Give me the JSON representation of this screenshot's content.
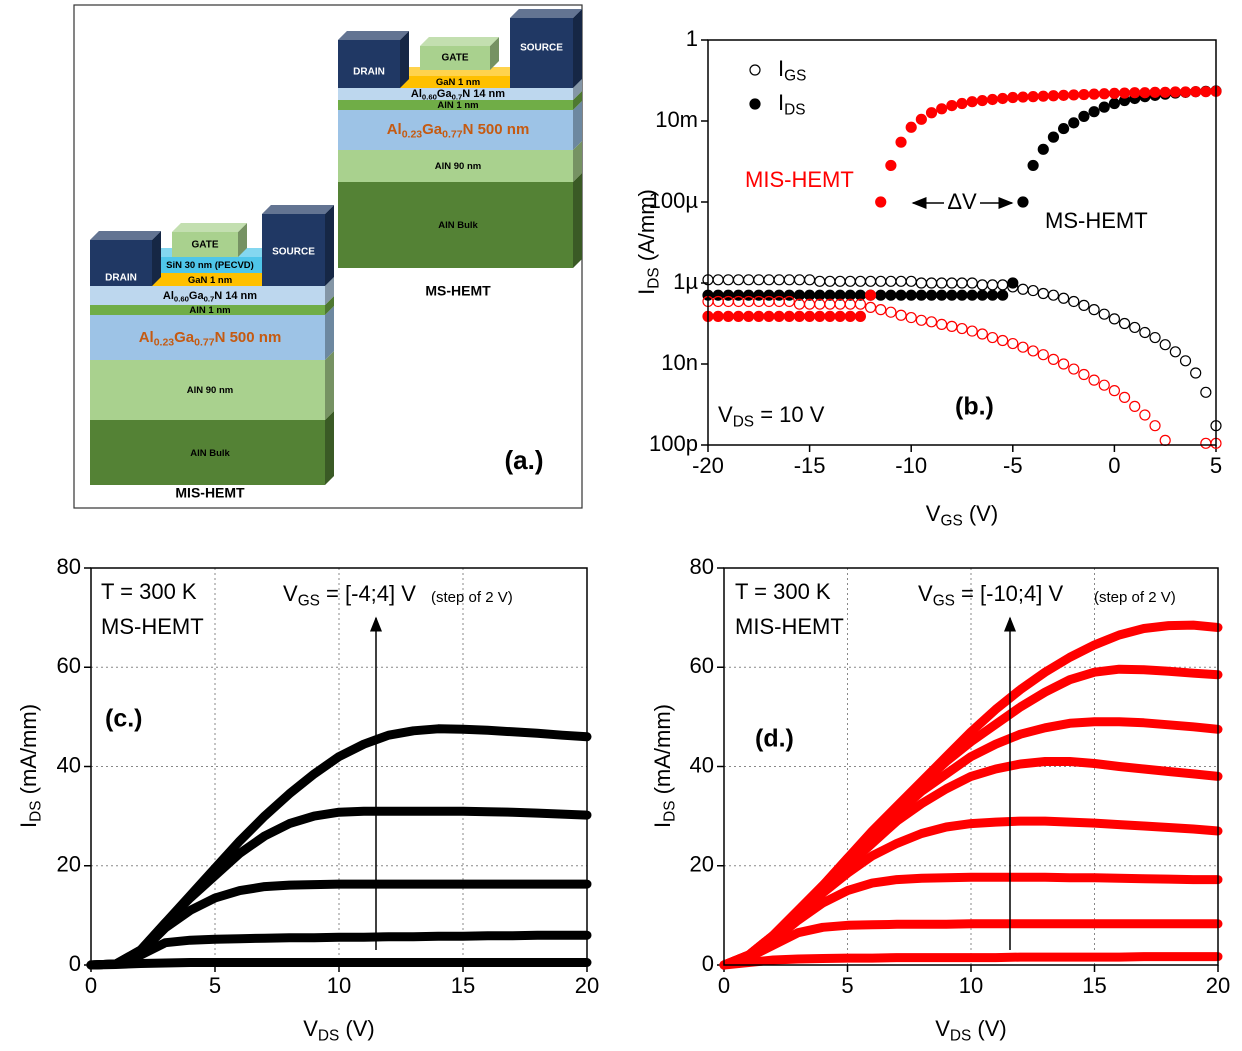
{
  "diagram": {
    "label": "(a.)",
    "devices": [
      {
        "name": "MIS-HEMT",
        "drain": "DRAIN",
        "gate": "GATE",
        "source": "SOURCE",
        "layers": [
          [
            "SiN 30 nm (PECVD)"
          ],
          [
            "GaN 1 nm"
          ],
          [
            "Al",
            "0.60",
            "Ga",
            "0.7",
            "N 14 nm"
          ],
          [
            "AlN 1 nm"
          ],
          [
            "Al",
            "0.23",
            "Ga",
            "0.77",
            "N 500 nm"
          ],
          [
            "AlN 90 nm"
          ],
          [
            "AlN Bulk"
          ]
        ]
      },
      {
        "name": "MS-HEMT",
        "drain": "DRAIN",
        "gate": "GATE",
        "source": "SOURCE",
        "layers": [
          [
            "GaN 1 nm"
          ],
          [
            "Al",
            "0.60",
            "Ga",
            "0.7",
            "N 14 nm"
          ],
          [
            "AlN 1 nm"
          ],
          [
            "Al",
            "0.23",
            "Ga",
            "0.77",
            "N 500 nm"
          ],
          [
            "AlN 90 nm"
          ],
          [
            "AlN Bulk"
          ]
        ]
      }
    ]
  },
  "chart_data": [
    {
      "type": "scatter",
      "title": "(b.)",
      "xlabel": [
        "V",
        "GS",
        " (V)"
      ],
      "ylabel": [
        "I",
        "DS",
        " (A/mm)"
      ],
      "xlim": [
        -20,
        5
      ],
      "xticks": [
        -20,
        -15,
        -10,
        -5,
        0,
        5
      ],
      "ylim": [
        1e-10,
        1
      ],
      "ylog": true,
      "yticks": [
        {
          "value": 1e-10,
          "label": "100p"
        },
        {
          "value": 1e-08,
          "label": "10n"
        },
        {
          "value": 1e-06,
          "label": "1µ"
        },
        {
          "value": 0.0001,
          "label": "100µ"
        },
        {
          "value": 0.01,
          "label": "10m"
        },
        1
      ],
      "legend": "upper left",
      "annotations": [
        [
          "MIS-HEMT"
        ],
        [
          "MS-HEMT"
        ],
        [
          "ΔV"
        ],
        [
          "V",
          "DS",
          " = 10 V"
        ]
      ],
      "x": [
        -20,
        -19.5,
        -19,
        -18.5,
        -18,
        -17.5,
        -17,
        -16.5,
        -16,
        -15.5,
        -15,
        -14.5,
        -14,
        -13.5,
        -13,
        -12.5,
        -12,
        -11.5,
        -11,
        -10.5,
        -10,
        -9.5,
        -9,
        -8.5,
        -8,
        -7.5,
        -7,
        -6.5,
        -6,
        -5.5,
        -5,
        -4.5,
        -4,
        -3.5,
        -3,
        -2.5,
        -2,
        -1.5,
        -1,
        -0.5,
        0,
        0.5,
        1,
        1.5,
        2,
        2.5,
        3,
        3.5,
        4,
        4.5,
        5
      ],
      "series": [
        {
          "name": [
            "I",
            "GS"
          ],
          "color": "#000000",
          "marker": "open",
          "values": [
            1.2e-06,
            1.2e-06,
            1.2e-06,
            1.2e-06,
            1.2e-06,
            1.2e-06,
            1.2e-06,
            1.2e-06,
            1.2e-06,
            1.2e-06,
            1.2e-06,
            1.1e-06,
            1.1e-06,
            1.1e-06,
            1.1e-06,
            1.1e-06,
            1.1e-06,
            1.1e-06,
            1.1e-06,
            1.1e-06,
            1.1e-06,
            1e-06,
            1e-06,
            1e-06,
            1e-06,
            1e-06,
            1e-06,
            9e-07,
            9e-07,
            9e-07,
            8e-07,
            7e-07,
            6.5e-07,
            5.5e-07,
            5e-07,
            4.2e-07,
            3.5e-07,
            2.8e-07,
            2.2e-07,
            1.7e-07,
            1.3e-07,
            1e-07,
            8e-08,
            6e-08,
            4.5e-08,
            3e-08,
            2e-08,
            1.2e-08,
            6e-09,
            2e-09,
            3e-10
          ]
        },
        {
          "name": [
            "I",
            "DS"
          ],
          "color": "#000000",
          "marker": "filled",
          "values": [
            5e-07,
            5e-07,
            5e-07,
            5e-07,
            5e-07,
            5e-07,
            5e-07,
            5e-07,
            5e-07,
            5e-07,
            5e-07,
            5e-07,
            5e-07,
            5e-07,
            5e-07,
            5e-07,
            5e-07,
            5e-07,
            5e-07,
            5e-07,
            5e-07,
            5e-07,
            5e-07,
            5e-07,
            5e-07,
            5e-07,
            5e-07,
            5e-07,
            5e-07,
            5e-07,
            1e-06,
            0.0001,
            0.0008,
            0.002,
            0.004,
            0.0065,
            0.009,
            0.013,
            0.017,
            0.022,
            0.027,
            0.032,
            0.036,
            0.04,
            0.043,
            0.046,
            0.049,
            0.051,
            0.053,
            0.054,
            0.055
          ]
        },
        {
          "color": "#ff0000",
          "marker": "open",
          "values": [
            3.5e-07,
            3.5e-07,
            3.5e-07,
            3.5e-07,
            3.5e-07,
            3.5e-07,
            3.5e-07,
            3.5e-07,
            3.5e-07,
            3e-07,
            3e-07,
            3e-07,
            3e-07,
            3e-07,
            3e-07,
            3e-07,
            2.5e-07,
            2.2e-07,
            1.9e-07,
            1.6e-07,
            1.4e-07,
            1.2e-07,
            1.1e-07,
            9.5e-08,
            8.5e-08,
            7.5e-08,
            6.5e-08,
            5.5e-08,
            4.5e-08,
            3.8e-08,
            3.2e-08,
            2.6e-08,
            2.1e-08,
            1.7e-08,
            1.3e-08,
            1e-08,
            7.5e-09,
            5.5e-09,
            4e-09,
            3e-09,
            2.2e-09,
            1.5e-09,
            9e-10,
            5.5e-10,
            3e-10,
            1.3e-10,
            null,
            null,
            null,
            1.1e-10,
            1.1e-10
          ]
        },
        {
          "color": "#ff0000",
          "marker": "filled",
          "values": [
            1.5e-07,
            1.5e-07,
            1.5e-07,
            1.5e-07,
            1.5e-07,
            1.5e-07,
            1.5e-07,
            1.5e-07,
            1.5e-07,
            1.5e-07,
            1.5e-07,
            1.5e-07,
            1.5e-07,
            1.5e-07,
            1.5e-07,
            1.5e-07,
            5e-07,
            0.0001,
            0.0008,
            0.003,
            0.007,
            0.011,
            0.016,
            0.02,
            0.024,
            0.027,
            0.03,
            0.032,
            0.034,
            0.036,
            0.038,
            0.039,
            0.04,
            0.041,
            0.042,
            0.043,
            0.044,
            0.045,
            0.046,
            0.047,
            0.048,
            0.049,
            0.05,
            0.05,
            0.051,
            0.051,
            0.052,
            0.052,
            0.053,
            0.053,
            0.054
          ]
        }
      ]
    },
    {
      "type": "line",
      "title": "(c.)",
      "xlabel": [
        "V",
        "DS",
        " (V)"
      ],
      "ylabel": [
        "I",
        "DS",
        " (mA/mm)"
      ],
      "xlim": [
        0,
        20
      ],
      "xticks": [
        0,
        5,
        10,
        15,
        20
      ],
      "ylim": [
        0,
        80
      ],
      "yticks": [
        0,
        20,
        40,
        60,
        80
      ],
      "grid": true,
      "annotations": [
        [
          "T = 300 K"
        ],
        [
          "MS-HEMT"
        ],
        [
          "V",
          "GS",
          " = [-4;4] V"
        ],
        [
          "(step of 2 V)"
        ]
      ],
      "x": [
        0,
        1,
        2,
        3,
        4,
        5,
        6,
        7,
        8,
        9,
        10,
        11,
        12,
        13,
        14,
        15,
        16,
        17,
        18,
        19,
        20
      ],
      "series": [
        {
          "color": "#000000",
          "values": [
            0,
            0.1,
            0.3,
            0.4,
            0.5,
            0.5,
            0.5,
            0.5,
            0.5,
            0.5,
            0.5,
            0.5,
            0.5,
            0.5,
            0.5,
            0.5,
            0.5,
            0.5,
            0.5,
            0.5,
            0.5
          ]
        },
        {
          "color": "#000000",
          "values": [
            0,
            0.2,
            2,
            4.5,
            5,
            5.2,
            5.3,
            5.4,
            5.5,
            5.5,
            5.6,
            5.6,
            5.7,
            5.7,
            5.8,
            5.8,
            5.9,
            5.9,
            6,
            6,
            6
          ]
        },
        {
          "color": "#000000",
          "values": [
            0,
            0.2,
            2.5,
            7.5,
            11,
            13.5,
            15,
            15.8,
            16.1,
            16.2,
            16.3,
            16.3,
            16.3,
            16.3,
            16.3,
            16.3,
            16.3,
            16.3,
            16.3,
            16.3,
            16.3
          ]
        },
        {
          "color": "#000000",
          "values": [
            0,
            0.2,
            3,
            8.5,
            13.5,
            18,
            22.5,
            26,
            28.5,
            30,
            30.8,
            31,
            31,
            31,
            31,
            31,
            30.9,
            30.8,
            30.6,
            30.4,
            30.2
          ]
        },
        {
          "color": "#000000",
          "values": [
            0,
            0.2,
            3,
            8.5,
            14,
            19.5,
            25,
            30,
            34.5,
            38.5,
            42,
            44.5,
            46.3,
            47.2,
            47.6,
            47.5,
            47.3,
            47,
            46.7,
            46.3,
            46
          ]
        }
      ]
    },
    {
      "type": "line",
      "title": "(d.)",
      "xlabel": [
        "V",
        "DS",
        " (V)"
      ],
      "ylabel": [
        "I",
        "DS",
        " (mA/mm)"
      ],
      "xlim": [
        0,
        20
      ],
      "xticks": [
        0,
        5,
        10,
        15,
        20
      ],
      "ylim": [
        0,
        80
      ],
      "yticks": [
        0,
        20,
        40,
        60,
        80
      ],
      "grid": true,
      "annotations": [
        [
          "T = 300 K"
        ],
        [
          "MIS-HEMT"
        ],
        [
          "V",
          "GS",
          " = [-10;4] V"
        ],
        [
          "(step of 2 V)"
        ]
      ],
      "x": [
        0,
        1,
        2,
        3,
        4,
        5,
        6,
        7,
        8,
        9,
        10,
        11,
        12,
        13,
        14,
        15,
        16,
        17,
        18,
        19,
        20
      ],
      "series": [
        {
          "color": "#ff0000",
          "values": [
            0,
            0.5,
            1,
            1.2,
            1.3,
            1.4,
            1.4,
            1.5,
            1.5,
            1.5,
            1.5,
            1.5,
            1.6,
            1.6,
            1.6,
            1.6,
            1.6,
            1.7,
            1.7,
            1.7,
            1.7
          ]
        },
        {
          "color": "#ff0000",
          "values": [
            0,
            1.5,
            4,
            6.5,
            7.6,
            8,
            8.1,
            8.2,
            8.2,
            8.2,
            8.3,
            8.3,
            8.3,
            8.3,
            8.3,
            8.3,
            8.3,
            8.3,
            8.3,
            8.3,
            8.3
          ]
        },
        {
          "color": "#ff0000",
          "values": [
            0,
            1.8,
            5,
            9,
            12.5,
            15,
            16.5,
            17.2,
            17.5,
            17.6,
            17.7,
            17.7,
            17.7,
            17.7,
            17.6,
            17.6,
            17.5,
            17.4,
            17.3,
            17.2,
            17.2
          ]
        },
        {
          "color": "#ff0000",
          "values": [
            0,
            1.8,
            5.5,
            10,
            14.5,
            18.5,
            22,
            24.5,
            26.5,
            27.8,
            28.5,
            28.8,
            29,
            29,
            28.8,
            28.6,
            28.3,
            28,
            27.7,
            27.4,
            27
          ]
        },
        {
          "color": "#ff0000",
          "values": [
            0,
            2,
            6,
            10.5,
            15.5,
            20,
            24.5,
            29,
            32.5,
            35.5,
            38,
            39.5,
            40.5,
            41,
            41,
            40.6,
            40,
            39.5,
            39,
            38.5,
            38
          ]
        },
        {
          "color": "#ff0000",
          "values": [
            0,
            2,
            6,
            11,
            16,
            21,
            26,
            30.5,
            35,
            38.5,
            42,
            44.5,
            46.5,
            47.8,
            48.7,
            49,
            49,
            48.8,
            48.4,
            48,
            47.5
          ]
        },
        {
          "color": "#ff0000",
          "values": [
            0,
            2,
            6,
            11,
            16,
            21.5,
            26.5,
            31.5,
            36.5,
            41,
            45,
            48.5,
            52,
            55,
            57.5,
            59,
            59.6,
            59.5,
            59.2,
            58.8,
            58.5
          ]
        },
        {
          "color": "#ff0000",
          "values": [
            0,
            2,
            6,
            11,
            16,
            21.5,
            27,
            32,
            37,
            42,
            47,
            51.5,
            55.5,
            59,
            62,
            64.5,
            66.5,
            67.8,
            68.4,
            68.5,
            68
          ]
        }
      ]
    }
  ]
}
